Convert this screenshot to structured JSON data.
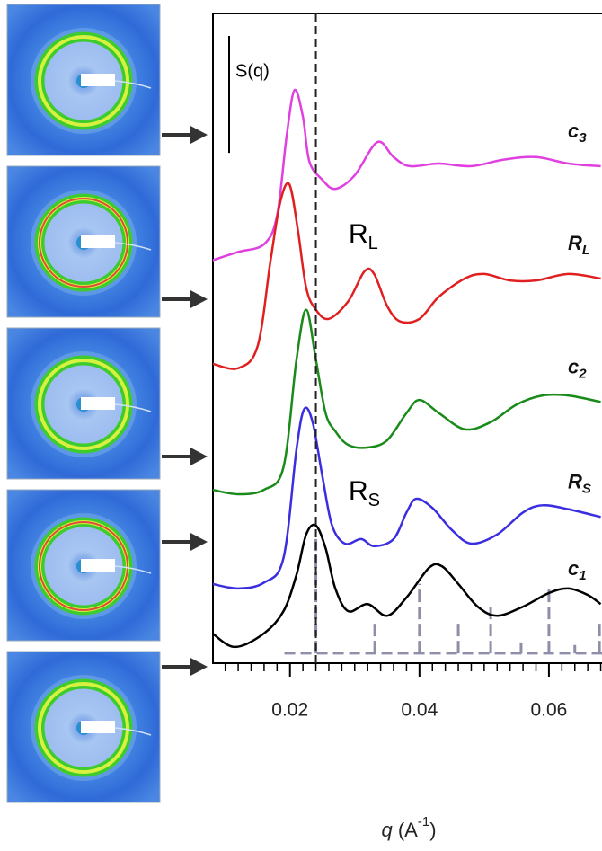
{
  "chart_data": {
    "type": "line",
    "xlabel": {
      "var": "q",
      "unit": " (A",
      "sup": "-1",
      "close": ")"
    },
    "xlim": [
      0.0081,
      0.0682
    ],
    "ylim": [
      0,
      100
    ],
    "xticks": [
      0.02,
      0.04,
      0.06
    ],
    "xminorticks": [
      0.01,
      0.012,
      0.014,
      0.016,
      0.018,
      0.022,
      0.024,
      0.026,
      0.028,
      0.03,
      0.032,
      0.034,
      0.036,
      0.038,
      0.042,
      0.044,
      0.046,
      0.048,
      0.05,
      0.052,
      0.054,
      0.056,
      0.058,
      0.062,
      0.064,
      0.066,
      0.068
    ],
    "marker_x": 0.024,
    "scale_bar": {
      "label": "S(q)",
      "length": 18
    },
    "annotations": [
      {
        "text": "R",
        "sub": "L"
      },
      {
        "text": "R",
        "sub": "S"
      }
    ],
    "series": [
      {
        "name": "c",
        "sub": "3",
        "color": "#e040e0",
        "x": [
          0.008,
          0.012,
          0.016,
          0.018,
          0.0195,
          0.0207,
          0.022,
          0.023,
          0.025,
          0.027,
          0.03,
          0.0335,
          0.036,
          0.0385,
          0.043,
          0.048,
          0.053,
          0.058,
          0.063,
          0.068
        ],
        "values": [
          62.0,
          63.3,
          64.5,
          68.9,
          81.3,
          88.2,
          84.1,
          77.2,
          74.4,
          73.0,
          75.1,
          80.2,
          77.9,
          76.5,
          76.9,
          76.5,
          77.5,
          77.9,
          76.9,
          76.5
        ]
      },
      {
        "name": "R",
        "sub": "L",
        "color": "#e02020",
        "x": [
          0.008,
          0.012,
          0.015,
          0.017,
          0.0185,
          0.0199,
          0.0212,
          0.0225,
          0.024,
          0.026,
          0.029,
          0.0315,
          0.033,
          0.035,
          0.037,
          0.04,
          0.043,
          0.047,
          0.05,
          0.054,
          0.058,
          0.063,
          0.068
        ],
        "values": [
          46.1,
          45.4,
          48.8,
          62.0,
          71.0,
          73.7,
          66.8,
          57.8,
          54.4,
          53.0,
          55.7,
          60.3,
          59.9,
          55.0,
          52.6,
          53.0,
          56.4,
          59.2,
          59.9,
          58.9,
          58.9,
          59.9,
          59.2
        ]
      },
      {
        "name": "c",
        "sub": "2",
        "color": "#1a8a1a",
        "x": [
          0.008,
          0.012,
          0.016,
          0.019,
          0.021,
          0.0225,
          0.024,
          0.0255,
          0.027,
          0.029,
          0.032,
          0.035,
          0.038,
          0.04,
          0.043,
          0.047,
          0.051,
          0.055,
          0.059,
          0.063,
          0.068
        ],
        "values": [
          26.7,
          26.0,
          26.7,
          30.2,
          46.7,
          54.4,
          46.7,
          38.5,
          35.7,
          33.6,
          33.2,
          34.3,
          38.5,
          40.5,
          38.5,
          36.0,
          37.1,
          39.8,
          41.2,
          41.2,
          40.2
        ]
      },
      {
        "name": "R",
        "sub": "S",
        "color": "#3a2ee0",
        "x": [
          0.008,
          0.012,
          0.016,
          0.019,
          0.021,
          0.0222,
          0.0235,
          0.025,
          0.0265,
          0.0285,
          0.031,
          0.033,
          0.036,
          0.038,
          0.0395,
          0.042,
          0.045,
          0.048,
          0.052,
          0.056,
          0.059,
          0.063,
          0.068
        ],
        "values": [
          12.2,
          11.5,
          12.4,
          16.2,
          32.9,
          39.1,
          37.1,
          28.8,
          21.2,
          18.4,
          19.1,
          18.0,
          19.1,
          23.2,
          25.3,
          23.9,
          20.5,
          18.4,
          19.8,
          23.2,
          24.3,
          23.7,
          22.5
        ]
      },
      {
        "name": "c",
        "sub": "1",
        "color": "#000000",
        "x": [
          0.008,
          0.0115,
          0.016,
          0.019,
          0.021,
          0.0225,
          0.024,
          0.0255,
          0.027,
          0.029,
          0.032,
          0.035,
          0.038,
          0.0415,
          0.0435,
          0.046,
          0.049,
          0.052,
          0.056,
          0.06,
          0.063,
          0.066,
          0.068
        ],
        "values": [
          4.6,
          2.5,
          4.6,
          8.0,
          13.6,
          19.8,
          21.2,
          17.7,
          11.5,
          8.0,
          9.1,
          7.3,
          10.1,
          14.7,
          14.9,
          12.2,
          8.7,
          7.3,
          8.7,
          10.8,
          11.5,
          10.5,
          9.1
        ]
      }
    ],
    "reference_peaks": {
      "color": "#8e8ea8",
      "baseline": 1.5,
      "x": [
        0.024,
        0.0331,
        0.04,
        0.046,
        0.051,
        0.0557,
        0.06,
        0.064,
        0.0678
      ],
      "values": [
        19.1,
        6.6,
        12.2,
        6.6,
        8.7,
        3.2,
        11.5,
        2.8,
        6.6
      ]
    }
  }
}
